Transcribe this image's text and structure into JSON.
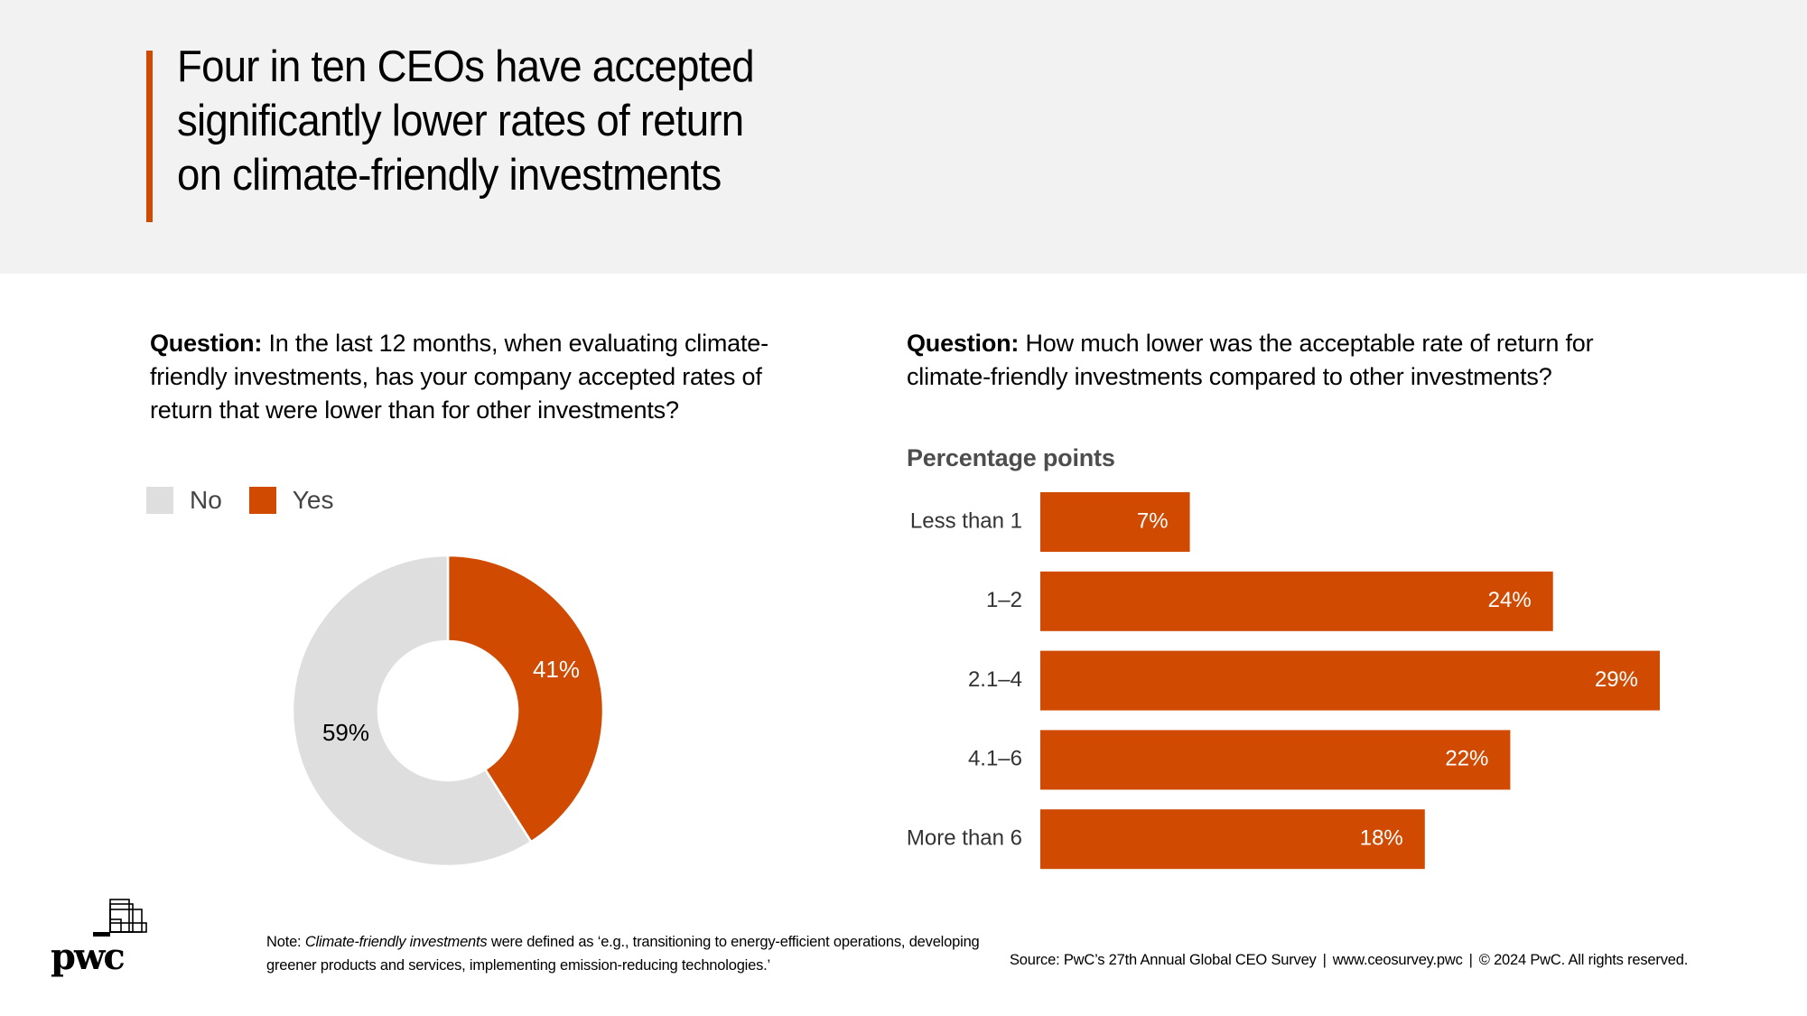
{
  "header": {
    "title": "Four in ten CEOs have accepted significantly lower rates of return on climate-friendly investments",
    "title_lines": [
      "Four in ten CEOs have accepted",
      "significantly lower rates of return",
      "on climate-friendly investments"
    ]
  },
  "colors": {
    "accent": "#d04a02",
    "no_gray": "#dedede",
    "header_bg": "#f2f2f2"
  },
  "left_panel": {
    "question_label": "Question:",
    "question_text": " In the last 12 months, when evaluating climate-friendly investments, has your company accepted rates of return that were lower than for other investments?",
    "legend": [
      {
        "label": "No",
        "color": "#dedede"
      },
      {
        "label": "Yes",
        "color": "#d04a02"
      }
    ]
  },
  "right_panel": {
    "question_label": "Question:",
    "question_text": " How much lower was the acceptable rate of return for climate-friendly investments compared to other investments?",
    "subtitle": "Percentage points"
  },
  "chart_data": [
    {
      "type": "pie",
      "variant": "donut",
      "title": "In the last 12 months, when evaluating climate-friendly investments, has your company accepted rates of return that were lower than for other investments?",
      "categories": [
        "Yes",
        "No"
      ],
      "values": [
        41,
        59
      ],
      "labels": [
        "41%",
        "59%"
      ],
      "colors": [
        "#d04a02",
        "#dedede"
      ],
      "legend": [
        "No",
        "Yes"
      ],
      "legend_position": "top-left"
    },
    {
      "type": "bar",
      "orientation": "horizontal",
      "title": "How much lower was the acceptable rate of return for climate-friendly investments compared to other investments?",
      "ylabel": "Percentage points",
      "xlabel": "",
      "categories": [
        "Less than 1",
        "1–2",
        "2.1–4",
        "4.1–6",
        "More than 6"
      ],
      "values": [
        7,
        24,
        29,
        22,
        18
      ],
      "labels": [
        "7%",
        "24%",
        "29%",
        "22%",
        "18%"
      ],
      "color": "#d04a02",
      "xlim": [
        0,
        29
      ],
      "grid": false
    }
  ],
  "footer": {
    "logo_text": "pwc",
    "note_prefix": "Note: ",
    "note_italic": "Climate-friendly investments",
    "note_rest": " were defined as ‘e.g., transitioning to energy-efficient operations, developing greener products and services, implementing emission-reducing technologies.’",
    "source_parts": [
      "Source: PwC’s 27th Annual Global CEO Survey",
      "www.ceosurvey.pwc",
      "© 2024 PwC. All rights reserved."
    ],
    "separator": "|"
  }
}
